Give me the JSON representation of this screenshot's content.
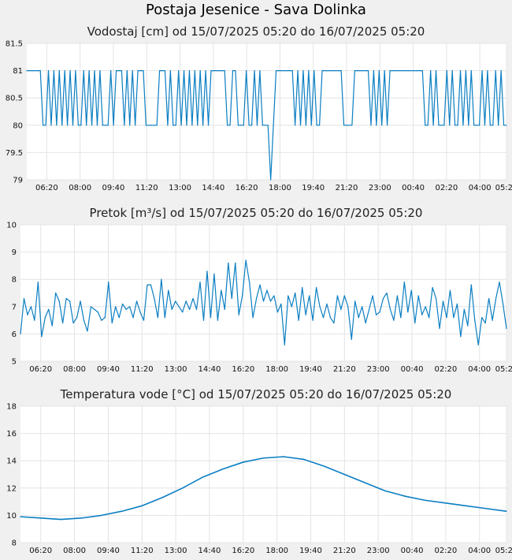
{
  "page": {
    "title": "Postaja Jesenice - Sava Dolinka"
  },
  "chart_data": [
    {
      "type": "line",
      "title": "Vodostaj [cm] od 15/07/2025 05:20 do 16/07/2025 05:20",
      "xlabel": "",
      "ylabel": "",
      "x_ticks": [
        "06:20",
        "08:00",
        "09:40",
        "11:20",
        "13:00",
        "14:40",
        "16:20",
        "18:00",
        "19:40",
        "21:20",
        "23:00",
        "00:40",
        "02:20",
        "04:00",
        "05:20"
      ],
      "y_ticks": [
        "79",
        "79.5",
        "80",
        "80.5",
        "81",
        "81.5"
      ],
      "ylim": [
        79,
        81.5
      ],
      "x_unit": "minutes since 05:20",
      "color": "#0a7ec2",
      "values": [
        81,
        81,
        81,
        81,
        81,
        81,
        80,
        80,
        81,
        80,
        81,
        80,
        81,
        80,
        81,
        80,
        81,
        80,
        81,
        80,
        80,
        81,
        80,
        81,
        80,
        81,
        80,
        81,
        80,
        80,
        80,
        81,
        80,
        81,
        81,
        81,
        80,
        81,
        80,
        81,
        80,
        81,
        81,
        81,
        80,
        80,
        80,
        80,
        80,
        81,
        81,
        81,
        80,
        81,
        80,
        80,
        81,
        80,
        81,
        80,
        81,
        80,
        81,
        80,
        81,
        80,
        81,
        80,
        81,
        81,
        81,
        81,
        81,
        81,
        80,
        80,
        81,
        81,
        80,
        80,
        80,
        81,
        80,
        80,
        81,
        80,
        81,
        80,
        80,
        80,
        79,
        80,
        81,
        81,
        81,
        81,
        81,
        81,
        81,
        80,
        81,
        80,
        81,
        80,
        81,
        80,
        81,
        80,
        80,
        81,
        81,
        81,
        81,
        81,
        81,
        81,
        81,
        80,
        80,
        80,
        80,
        81,
        81,
        81,
        81,
        81,
        81,
        80,
        81,
        80,
        81,
        80,
        81,
        80,
        81,
        81,
        81,
        81,
        81,
        81,
        81,
        81,
        81,
        81,
        81,
        81,
        81,
        80,
        80,
        81,
        80,
        81,
        80,
        80,
        80,
        81,
        80,
        81,
        80,
        80,
        81,
        80,
        81,
        80,
        81,
        80,
        80,
        80,
        81,
        80,
        81,
        80,
        80,
        81,
        80,
        81,
        80,
        80
      ]
    },
    {
      "type": "line",
      "title": "Pretok [m³/s] od 15/07/2025 05:20 do 16/07/2025 05:20",
      "xlabel": "",
      "ylabel": "",
      "x_ticks": [
        "06:20",
        "08:00",
        "09:40",
        "11:20",
        "13:00",
        "14:40",
        "16:20",
        "18:00",
        "19:40",
        "21:20",
        "23:00",
        "00:40",
        "02:20",
        "04:00",
        "05:20"
      ],
      "y_ticks": [
        "5",
        "6",
        "7",
        "8",
        "9",
        "10"
      ],
      "ylim": [
        5,
        10
      ],
      "x_unit": "minutes since 05:20",
      "color": "#0a7ec2",
      "values": [
        6.0,
        7.3,
        6.7,
        7.0,
        6.5,
        7.9,
        5.9,
        6.6,
        6.9,
        6.3,
        7.5,
        7.2,
        6.4,
        7.3,
        7.2,
        6.4,
        6.6,
        7.2,
        6.5,
        6.1,
        7.0,
        6.9,
        6.8,
        6.5,
        6.6,
        7.9,
        6.4,
        7.0,
        6.6,
        7.1,
        6.9,
        7.0,
        6.6,
        7.2,
        6.8,
        6.5,
        7.8,
        7.8,
        7.3,
        6.6,
        8.0,
        6.6,
        7.6,
        6.9,
        7.2,
        7.0,
        6.8,
        7.2,
        6.9,
        7.3,
        6.9,
        7.9,
        6.5,
        8.3,
        6.6,
        8.2,
        6.5,
        7.6,
        6.9,
        8.6,
        7.3,
        8.6,
        6.7,
        7.4,
        8.7,
        7.9,
        6.6,
        7.3,
        7.8,
        7.2,
        7.6,
        7.2,
        7.4,
        6.8,
        7.1,
        5.6,
        7.4,
        7.0,
        7.5,
        6.5,
        7.7,
        6.7,
        7.4,
        6.5,
        7.7,
        7.0,
        6.6,
        7.1,
        6.6,
        6.4,
        7.4,
        6.9,
        7.4,
        7.0,
        5.8,
        7.2,
        6.6,
        7.0,
        6.4,
        6.9,
        7.4,
        6.7,
        6.8,
        7.3,
        7.5,
        6.9,
        6.5,
        7.4,
        6.6,
        7.9,
        6.8,
        7.6,
        6.4,
        7.4,
        6.7,
        7.0,
        6.6,
        7.7,
        7.3,
        6.2,
        7.2,
        6.6,
        7.6,
        6.6,
        7.1,
        5.9,
        6.9,
        6.3,
        7.8,
        6.5,
        5.6,
        6.6,
        6.4,
        7.3,
        6.5,
        7.3,
        7.9,
        7.1,
        6.2
      ],
      "note": ""
    },
    {
      "type": "line",
      "title": "Temperatura vode [°C] od 15/07/2025 05:20 do 16/07/2025 05:20",
      "xlabel": "",
      "ylabel": "",
      "x_ticks": [
        "06:20",
        "08:00",
        "09:40",
        "11:20",
        "13:00",
        "14:40",
        "16:20",
        "18:00",
        "19:40",
        "21:20",
        "23:00",
        "00:40",
        "02:20",
        "04:00",
        "05:20"
      ],
      "y_ticks": [
        "8",
        "10",
        "12",
        "14",
        "16",
        "18"
      ],
      "ylim": [
        8,
        18
      ],
      "x_unit": "minutes since 05:20",
      "color": "#0a7ec2",
      "x": [
        0,
        60,
        120,
        180,
        240,
        300,
        360,
        420,
        480,
        540,
        600,
        660,
        720,
        780,
        840,
        900,
        960,
        1020,
        1080,
        1140,
        1200,
        1260,
        1320,
        1380,
        1440
      ],
      "values": [
        9.9,
        9.8,
        9.7,
        9.8,
        10.0,
        10.3,
        10.7,
        11.3,
        12.0,
        12.8,
        13.4,
        13.9,
        14.2,
        14.3,
        14.1,
        13.6,
        13.0,
        12.4,
        11.8,
        11.4,
        11.1,
        10.9,
        10.7,
        10.5,
        10.3
      ]
    }
  ]
}
